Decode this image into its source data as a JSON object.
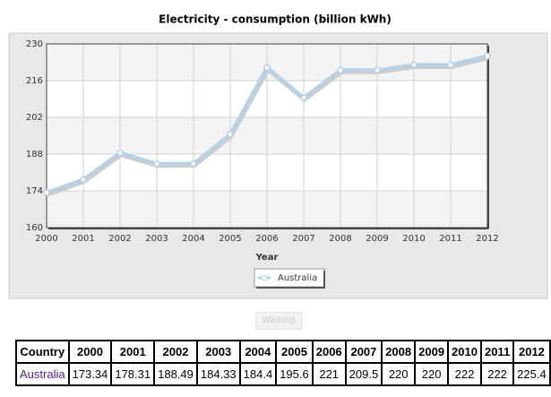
{
  "chart_data": {
    "type": "line",
    "title": "Electricity - consumption (billion kWh)",
    "x_label": "Year",
    "x": [
      2000,
      2001,
      2002,
      2003,
      2004,
      2005,
      2006,
      2007,
      2008,
      2009,
      2010,
      2011,
      2012
    ],
    "xlim": [
      2000,
      2012
    ],
    "xticks": [
      2000,
      2001,
      2002,
      2003,
      2004,
      2005,
      2006,
      2007,
      2008,
      2009,
      2010,
      2011,
      2012
    ],
    "ylim": [
      160,
      230
    ],
    "yticks": [
      160,
      174,
      188,
      202,
      216,
      230
    ],
    "grid": true,
    "series": [
      {
        "name": "Australia",
        "color": "#b7d1e6",
        "values": [
          173.34,
          178.31,
          188.49,
          184.33,
          184.4,
          195.6,
          221,
          209.5,
          220,
          220,
          222,
          222,
          225.4
        ]
      }
    ]
  },
  "button": "Waiting",
  "table": {
    "header": [
      "Country",
      "2000",
      "2001",
      "2002",
      "2003",
      "2004",
      "2005",
      "2006",
      "2007",
      "2008",
      "2009",
      "2010",
      "2011",
      "2012"
    ],
    "rows": [
      [
        "Australia",
        173.34,
        178.31,
        188.49,
        184.33,
        184.4,
        195.6,
        221,
        209.5,
        220,
        220,
        222,
        222,
        225.4
      ]
    ]
  }
}
